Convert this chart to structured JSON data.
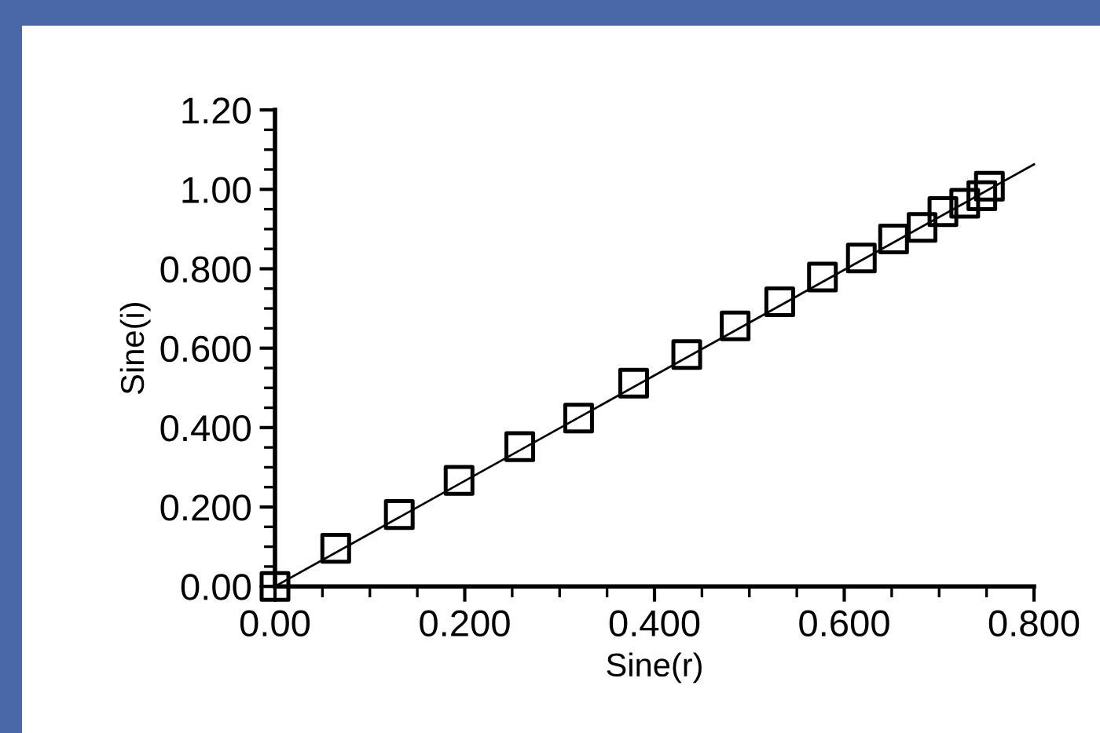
{
  "chart_data": {
    "type": "scatter",
    "xlabel": "Sine(r)",
    "ylabel": "Sine(i)",
    "xlim": [
      0,
      0.8
    ],
    "ylim": [
      0,
      1.2
    ],
    "xticks": [
      {
        "value": 0,
        "label": "0.00"
      },
      {
        "value": 0.2,
        "label": "0.200"
      },
      {
        "value": 0.4,
        "label": "0.400"
      },
      {
        "value": 0.6,
        "label": "0.600"
      },
      {
        "value": 0.8,
        "label": "0.800"
      }
    ],
    "yticks": [
      {
        "value": 0,
        "label": "0.00"
      },
      {
        "value": 0.2,
        "label": "0.200"
      },
      {
        "value": 0.4,
        "label": "0.400"
      },
      {
        "value": 0.6,
        "label": "0.600"
      },
      {
        "value": 0.8,
        "label": "0.800"
      },
      {
        "value": 1.0,
        "label": "1.00"
      },
      {
        "value": 1.2,
        "label": "1.20"
      }
    ],
    "grid": false,
    "legend": false,
    "series": [
      {
        "marker": "square",
        "color": "#000000",
        "x": [
          0,
          0.064,
          0.131,
          0.194,
          0.258,
          0.32,
          0.378,
          0.434,
          0.485,
          0.532,
          0.577,
          0.618,
          0.652,
          0.682,
          0.704,
          0.727,
          0.745,
          0.753
        ],
        "values": [
          0,
          0.096,
          0.181,
          0.267,
          0.352,
          0.424,
          0.512,
          0.584,
          0.656,
          0.717,
          0.779,
          0.827,
          0.875,
          0.904,
          0.944,
          0.965,
          0.984,
          1.008
        ]
      },
      {
        "type": "line",
        "marker": "none",
        "line_style": "solid",
        "color": "#000000",
        "x": [
          0,
          0.8
        ],
        "values": [
          0,
          1.063
        ]
      }
    ]
  }
}
